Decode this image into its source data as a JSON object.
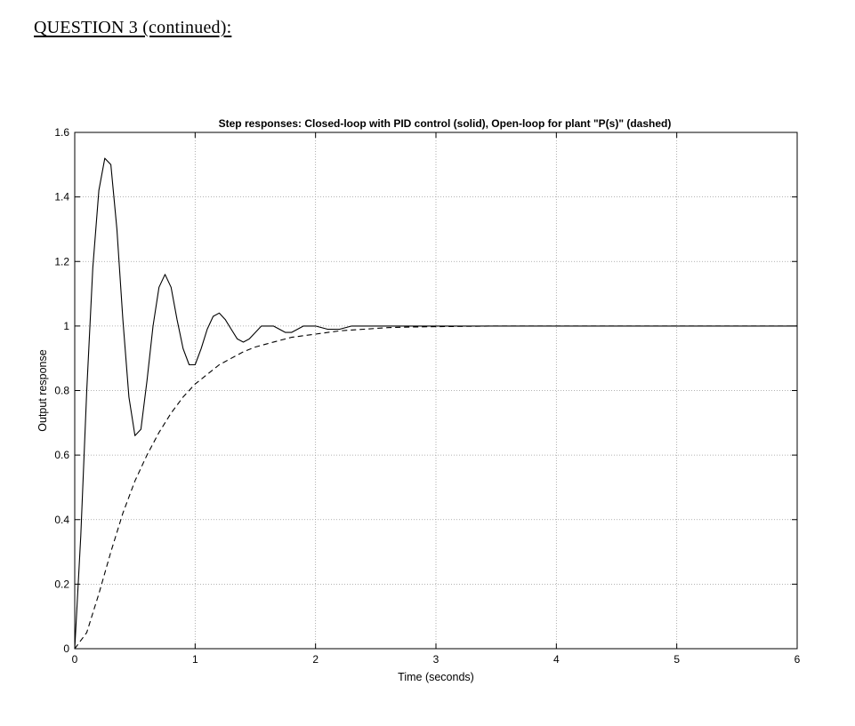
{
  "page": {
    "heading": "QUESTION 3 (continued):"
  },
  "chart_data": {
    "type": "line",
    "title": "Step responses: Closed-loop with PID control (solid), Open-loop for plant \"P(s)\" (dashed)",
    "xlabel": "Time (seconds)",
    "ylabel": "Output response",
    "xlim": [
      0,
      6
    ],
    "ylim": [
      0,
      1.6
    ],
    "xticks": [
      "0",
      "1",
      "2",
      "3",
      "4",
      "5",
      "6"
    ],
    "yticks": [
      "0",
      "0.2",
      "0.4",
      "0.6",
      "0.8",
      "1",
      "1.2",
      "1.4",
      "1.6"
    ],
    "grid": true,
    "series": [
      {
        "style": "solid",
        "color": "#000000",
        "x": [
          0,
          0.05,
          0.1,
          0.15,
          0.2,
          0.25,
          0.3,
          0.35,
          0.4,
          0.45,
          0.5,
          0.55,
          0.6,
          0.65,
          0.7,
          0.75,
          0.8,
          0.85,
          0.9,
          0.95,
          1.0,
          1.05,
          1.1,
          1.15,
          1.2,
          1.25,
          1.3,
          1.35,
          1.4,
          1.45,
          1.5,
          1.55,
          1.6,
          1.65,
          1.7,
          1.75,
          1.8,
          1.85,
          1.9,
          1.95,
          2.0,
          2.1,
          2.2,
          2.3,
          2.4,
          2.5,
          2.6,
          2.7,
          2.8,
          2.9,
          3.0,
          3.5,
          4.0,
          4.5,
          5.0,
          5.5,
          6.0
        ],
        "y": [
          0,
          0.35,
          0.8,
          1.18,
          1.42,
          1.52,
          1.5,
          1.3,
          1.02,
          0.78,
          0.66,
          0.68,
          0.83,
          1.0,
          1.12,
          1.16,
          1.12,
          1.02,
          0.93,
          0.88,
          0.88,
          0.93,
          0.99,
          1.03,
          1.04,
          1.02,
          0.99,
          0.96,
          0.95,
          0.96,
          0.98,
          1.0,
          1.0,
          1.0,
          0.99,
          0.98,
          0.98,
          0.99,
          1.0,
          1.0,
          1.0,
          0.99,
          0.99,
          1.0,
          1.0,
          1.0,
          1.0,
          1.0,
          1.0,
          1.0,
          1.0,
          1.0,
          1.0,
          1.0,
          1.0,
          1.0,
          1.0
        ]
      },
      {
        "style": "dashed",
        "color": "#000000",
        "x": [
          0,
          0.1,
          0.2,
          0.3,
          0.4,
          0.5,
          0.6,
          0.7,
          0.8,
          0.9,
          1.0,
          1.1,
          1.2,
          1.3,
          1.4,
          1.5,
          1.6,
          1.7,
          1.8,
          1.9,
          2.0,
          2.2,
          2.4,
          2.6,
          2.8,
          3.0,
          3.5,
          4.0,
          5.0,
          6.0
        ],
        "y": [
          0,
          0.05,
          0.17,
          0.3,
          0.42,
          0.52,
          0.6,
          0.67,
          0.73,
          0.78,
          0.82,
          0.85,
          0.88,
          0.9,
          0.92,
          0.935,
          0.945,
          0.955,
          0.965,
          0.97,
          0.975,
          0.985,
          0.99,
          0.995,
          0.997,
          0.998,
          1.0,
          1.0,
          1.0,
          1.0
        ]
      }
    ]
  }
}
